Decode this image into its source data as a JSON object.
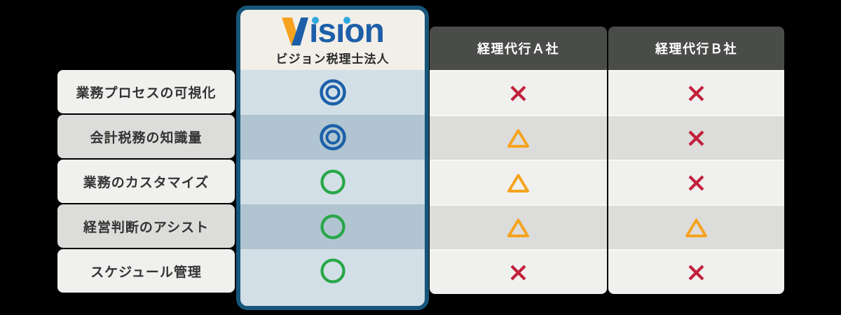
{
  "background_color": "#000000",
  "vision": {
    "logo_text": "Vision",
    "subtitle": "ビジョン税理士法人"
  },
  "competitors": [
    {
      "label": "経理代行Ａ社"
    },
    {
      "label": "経理代行Ｂ社"
    }
  ],
  "rows": [
    {
      "label": "業務プロセスの可視化",
      "vision": "double-circle",
      "company_a": "cross",
      "company_b": "cross"
    },
    {
      "label": "会計税務の知識量",
      "vision": "double-circle",
      "company_a": "triangle",
      "company_b": "cross"
    },
    {
      "label": "業務のカスタマイズ",
      "vision": "circle",
      "company_a": "triangle",
      "company_b": "cross"
    },
    {
      "label": "経営判断のアシスト",
      "vision": "circle",
      "company_a": "triangle",
      "company_b": "triangle"
    },
    {
      "label": "スケジュール管理",
      "vision": "circle",
      "company_a": "cross",
      "company_b": "cross"
    }
  ],
  "symbol_colors": {
    "double-circle": "#1b60a8",
    "circle": "#27a747",
    "cross": "#c2203d",
    "triangle": "#f5a31f"
  },
  "theme": {
    "background": "#000000",
    "vision_border": "#17567a",
    "vision_header_bg": "#f2efe9",
    "vision_row_light": "#d3dfe7",
    "vision_row_dark": "#b0c5d1",
    "row_light": "#f0f0ee",
    "row_dark": "#dcdcda",
    "header_bg": "#4a4c49",
    "header_text": "#ffffff",
    "label_text": "#333333",
    "logo_primary": "#1d5fa8",
    "logo_accent": "#f6a21f",
    "logo_dot": "#2fa8e0"
  }
}
